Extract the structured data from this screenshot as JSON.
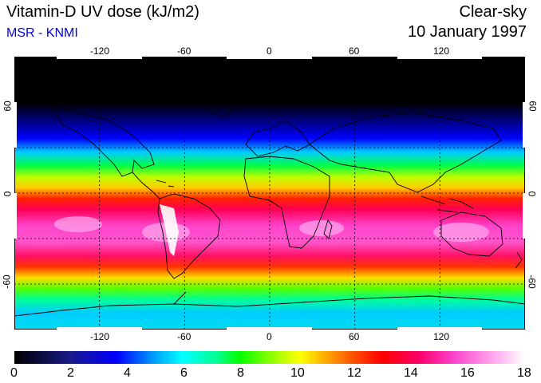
{
  "header": {
    "title": "Vitamin-D UV dose (kJ/m2)",
    "subtitle": "MSR - KNMI",
    "condition": "Clear-sky",
    "date": "10 January 1997"
  },
  "map": {
    "lon_ticks": [
      "-120",
      "-60",
      "0",
      "60",
      "120"
    ],
    "lat_ticks": [
      "60",
      "0",
      "-60"
    ],
    "lon_range": [
      -180,
      180
    ],
    "lat_range": [
      -90,
      90
    ],
    "grid": true
  },
  "colorbar": {
    "min": 0,
    "max": 18,
    "ticks": [
      "0",
      "2",
      "4",
      "6",
      "8",
      "10",
      "12",
      "14",
      "16",
      "18"
    ],
    "colors": [
      "#000000",
      "#0000ff",
      "#00ffff",
      "#00ff00",
      "#ffff00",
      "#ff0000",
      "#ff44cc",
      "#ffffff"
    ]
  }
}
